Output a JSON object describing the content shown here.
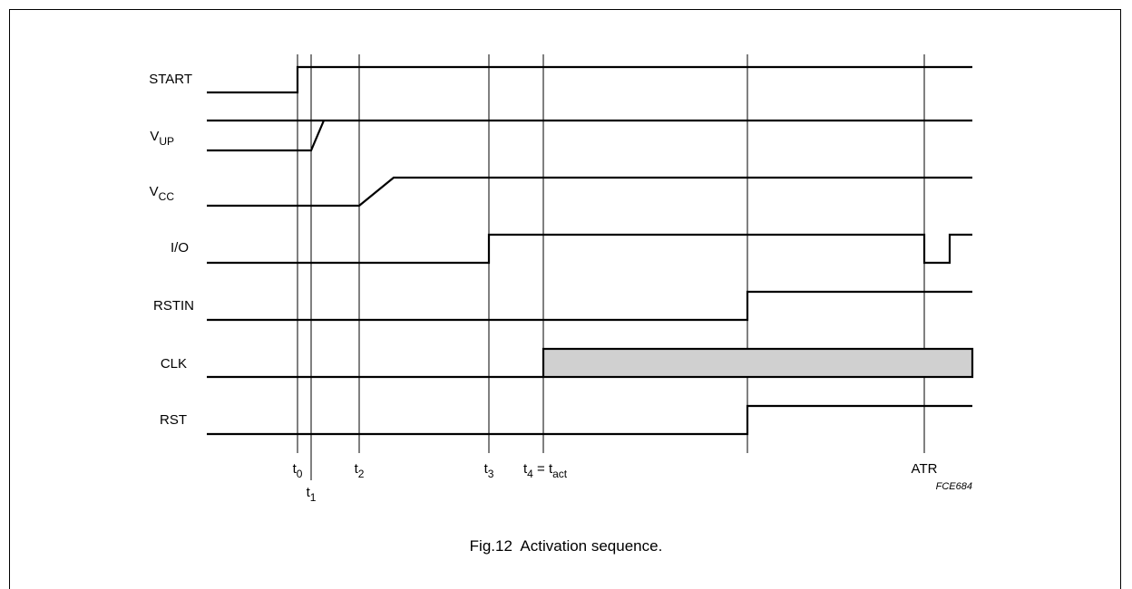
{
  "figure": {
    "caption": "Fig.12  Activation sequence.",
    "code": "FCE684",
    "clk_fill_color": "#d0d0d0"
  },
  "signals": [
    {
      "id": "start",
      "name": "START"
    },
    {
      "id": "vup",
      "name": "V",
      "sub": "UP"
    },
    {
      "id": "vcc",
      "name": "V",
      "sub": "CC"
    },
    {
      "id": "io",
      "name": "I/O"
    },
    {
      "id": "rstin",
      "name": "RSTIN"
    },
    {
      "id": "clk",
      "name": "CLK"
    },
    {
      "id": "rst",
      "name": "RST"
    }
  ],
  "time_markers": [
    {
      "id": "t0",
      "main": "t",
      "sub": "0"
    },
    {
      "id": "t1",
      "main": "t",
      "sub": "1"
    },
    {
      "id": "t2",
      "main": "t",
      "sub": "2"
    },
    {
      "id": "t3",
      "main": "t",
      "sub": "3"
    },
    {
      "id": "t4",
      "main": "t",
      "sub": "4",
      "suffix": " = t",
      "suffix_sub": "act"
    },
    {
      "id": "atr",
      "main": "ATR"
    }
  ]
}
